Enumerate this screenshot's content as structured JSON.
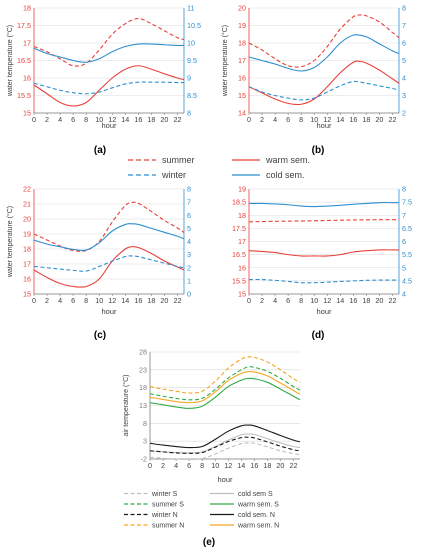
{
  "colors": {
    "red": "#e8403a",
    "blue": "#2e8fd0",
    "black": "#1a1a1a",
    "green": "#2eaa48",
    "orange": "#f5a623",
    "gray": "#bfbfbf",
    "grid": "#d9d9d9",
    "axis": "#7f7f7f"
  },
  "legend_top": [
    {
      "label": "summer",
      "color": "#e8403a",
      "dash": true
    },
    {
      "label": "warm sem.",
      "color": "#e8403a",
      "dash": false
    },
    {
      "label": "winter",
      "color": "#2e8fd0",
      "dash": true
    },
    {
      "label": "cold sem.",
      "color": "#2e8fd0",
      "dash": false
    }
  ],
  "legend_e": [
    {
      "label": "winter S",
      "color": "#bfbfbf",
      "dash": true
    },
    {
      "label": "cold sem S",
      "color": "#bfbfbf",
      "dash": false
    },
    {
      "label": "summer S",
      "color": "#2eaa48",
      "dash": true
    },
    {
      "label": "warm sem. S",
      "color": "#2eaa48",
      "dash": false
    },
    {
      "label": "winter N",
      "color": "#1a1a1a",
      "dash": true
    },
    {
      "label": "cold sem. N",
      "color": "#1a1a1a",
      "dash": false
    },
    {
      "label": "summer N",
      "color": "#f5a623",
      "dash": true
    },
    {
      "label": "warm sem. N",
      "color": "#f5a623",
      "dash": false
    }
  ],
  "chart_data": [
    {
      "id": "a",
      "caption": "(a)",
      "type": "line",
      "xlabel": "hour",
      "ylabel": "water temperature (°C)",
      "x_ticks": [
        0,
        2,
        4,
        6,
        8,
        10,
        12,
        14,
        16,
        18,
        20,
        22
      ],
      "xlim": [
        0,
        23
      ],
      "ylim_left": [
        15,
        18
      ],
      "yticks_left": [
        "15",
        "15.5",
        "16",
        "16.5",
        "17",
        "17.5",
        "18"
      ],
      "ylim_right": [
        8,
        11
      ],
      "yticks_right": [
        "8",
        "8.5",
        "9",
        "9.5",
        "10",
        "10.5",
        "11"
      ],
      "series": [
        {
          "axis": "left",
          "color": "red",
          "dash": true,
          "x": [
            0,
            2,
            4,
            6,
            8,
            10,
            12,
            14,
            16,
            18,
            20,
            22,
            23
          ],
          "y": [
            16.9,
            16.75,
            16.55,
            16.35,
            16.42,
            16.8,
            17.25,
            17.55,
            17.7,
            17.55,
            17.35,
            17.15,
            17.1
          ]
        },
        {
          "axis": "left",
          "color": "red",
          "dash": false,
          "x": [
            0,
            2,
            4,
            6,
            8,
            10,
            12,
            14,
            16,
            18,
            20,
            22,
            23
          ],
          "y": [
            15.8,
            15.55,
            15.3,
            15.2,
            15.3,
            15.65,
            16.0,
            16.25,
            16.35,
            16.25,
            16.12,
            16.0,
            15.95
          ]
        },
        {
          "axis": "right",
          "color": "blue",
          "dash": true,
          "x": [
            0,
            2,
            4,
            6,
            8,
            10,
            12,
            14,
            16,
            18,
            20,
            22,
            23
          ],
          "y": [
            8.85,
            8.75,
            8.65,
            8.58,
            8.55,
            8.6,
            8.72,
            8.83,
            8.88,
            8.88,
            8.88,
            8.87,
            8.87
          ]
        },
        {
          "axis": "right",
          "color": "blue",
          "dash": false,
          "x": [
            0,
            2,
            4,
            6,
            8,
            10,
            12,
            14,
            16,
            18,
            20,
            22,
            23
          ],
          "y": [
            9.85,
            9.7,
            9.6,
            9.5,
            9.45,
            9.55,
            9.75,
            9.9,
            9.97,
            9.97,
            9.95,
            9.93,
            9.93
          ]
        }
      ]
    },
    {
      "id": "b",
      "caption": "(b)",
      "type": "line",
      "xlabel": "hour",
      "ylabel": "water temperature (°C)",
      "x_ticks": [
        0,
        2,
        4,
        6,
        8,
        10,
        12,
        14,
        16,
        18,
        20,
        22
      ],
      "xlim": [
        0,
        23
      ],
      "ylim_left": [
        14,
        20
      ],
      "yticks_left": [
        "14",
        "15",
        "16",
        "17",
        "18",
        "19",
        "20"
      ],
      "ylim_right": [
        2,
        8
      ],
      "yticks_right": [
        "2",
        "3",
        "4",
        "5",
        "6",
        "7",
        "8"
      ],
      "series": [
        {
          "axis": "left",
          "color": "red",
          "dash": true,
          "x": [
            0,
            2,
            4,
            6,
            8,
            10,
            12,
            14,
            16,
            17,
            18,
            20,
            22,
            23
          ],
          "y": [
            18.0,
            17.6,
            17.1,
            16.7,
            16.65,
            17.0,
            17.8,
            18.8,
            19.5,
            19.6,
            19.55,
            19.2,
            18.6,
            18.3
          ]
        },
        {
          "axis": "left",
          "color": "red",
          "dash": false,
          "x": [
            0,
            2,
            4,
            6,
            8,
            10,
            12,
            14,
            16,
            17,
            18,
            20,
            22,
            23
          ],
          "y": [
            15.5,
            15.15,
            14.8,
            14.55,
            14.5,
            14.8,
            15.5,
            16.3,
            16.9,
            16.95,
            16.85,
            16.45,
            15.95,
            15.7
          ]
        },
        {
          "axis": "right",
          "color": "blue",
          "dash": true,
          "x": [
            0,
            2,
            4,
            6,
            8,
            10,
            12,
            14,
            16,
            18,
            20,
            22,
            23
          ],
          "y": [
            3.5,
            3.2,
            3.0,
            2.85,
            2.75,
            2.85,
            3.2,
            3.55,
            3.8,
            3.7,
            3.55,
            3.4,
            3.3
          ]
        },
        {
          "axis": "right",
          "color": "blue",
          "dash": false,
          "x": [
            0,
            2,
            4,
            6,
            8,
            10,
            12,
            14,
            16,
            18,
            20,
            22,
            23
          ],
          "y": [
            5.2,
            5.0,
            4.8,
            4.55,
            4.4,
            4.6,
            5.2,
            6.0,
            6.45,
            6.35,
            5.95,
            5.55,
            5.4
          ]
        }
      ]
    },
    {
      "id": "c",
      "caption": "(c)",
      "type": "line",
      "xlabel": "hour",
      "ylabel": "water temperature (°C)",
      "x_ticks": [
        0,
        2,
        4,
        6,
        8,
        10,
        12,
        14,
        16,
        18,
        20,
        22
      ],
      "xlim": [
        0,
        23
      ],
      "ylim_left": [
        15,
        22
      ],
      "yticks_left": [
        "15",
        "16",
        "17",
        "18",
        "19",
        "20",
        "21",
        "22"
      ],
      "ylim_right": [
        0,
        8
      ],
      "yticks_right": [
        "0",
        "1",
        "2",
        "3",
        "4",
        "5",
        "6",
        "7",
        "8"
      ],
      "series": [
        {
          "axis": "left",
          "color": "red",
          "dash": true,
          "x": [
            0,
            2,
            4,
            6,
            8,
            10,
            12,
            14,
            15,
            16,
            18,
            20,
            22,
            23
          ],
          "y": [
            19.0,
            18.6,
            18.2,
            17.9,
            17.9,
            18.5,
            19.8,
            20.9,
            21.1,
            21.05,
            20.5,
            19.9,
            19.4,
            19.1
          ]
        },
        {
          "axis": "left",
          "color": "red",
          "dash": false,
          "x": [
            0,
            2,
            4,
            6,
            8,
            10,
            12,
            14,
            15,
            16,
            18,
            20,
            22,
            23
          ],
          "y": [
            16.6,
            16.1,
            15.7,
            15.5,
            15.5,
            16.0,
            17.2,
            18.0,
            18.15,
            18.1,
            17.7,
            17.2,
            16.8,
            16.6
          ]
        },
        {
          "axis": "right",
          "color": "blue",
          "dash": true,
          "x": [
            0,
            2,
            4,
            6,
            8,
            10,
            12,
            14,
            15,
            16,
            18,
            20,
            22,
            23
          ],
          "y": [
            2.1,
            2.0,
            1.9,
            1.8,
            1.75,
            2.1,
            2.5,
            2.85,
            2.9,
            2.85,
            2.6,
            2.35,
            2.1,
            2.0
          ]
        },
        {
          "axis": "right",
          "color": "blue",
          "dash": false,
          "x": [
            0,
            2,
            4,
            6,
            8,
            10,
            12,
            14,
            15,
            16,
            18,
            20,
            22,
            23
          ],
          "y": [
            4.1,
            3.8,
            3.6,
            3.4,
            3.35,
            3.9,
            4.8,
            5.3,
            5.35,
            5.3,
            5.0,
            4.7,
            4.4,
            4.2
          ]
        }
      ]
    },
    {
      "id": "d",
      "caption": "(d)",
      "type": "line",
      "xlabel": "hour",
      "ylabel": "",
      "x_ticks": [
        0,
        2,
        4,
        6,
        8,
        10,
        12,
        14,
        16,
        18,
        20,
        22
      ],
      "xlim": [
        0,
        23
      ],
      "ylim_left": [
        15,
        19
      ],
      "yticks_left": [
        "15",
        "15.5",
        "16",
        "16.5",
        "17",
        "17.5",
        "18",
        "18.5",
        "19"
      ],
      "ylim_right": [
        4,
        8
      ],
      "yticks_right": [
        "4",
        "4.5",
        "5",
        "5.5",
        "6",
        "6.5",
        "7",
        "7.5",
        "8"
      ],
      "series": [
        {
          "axis": "left",
          "color": "red",
          "dash": true,
          "x": [
            0,
            4,
            8,
            12,
            16,
            20,
            23
          ],
          "y": [
            17.75,
            17.77,
            17.78,
            17.8,
            17.82,
            17.83,
            17.83
          ]
        },
        {
          "axis": "left",
          "color": "red",
          "dash": false,
          "x": [
            0,
            2,
            4,
            6,
            8,
            10,
            12,
            14,
            16,
            18,
            20,
            22,
            23
          ],
          "y": [
            16.65,
            16.62,
            16.58,
            16.5,
            16.45,
            16.45,
            16.45,
            16.5,
            16.6,
            16.65,
            16.68,
            16.68,
            16.68
          ]
        },
        {
          "axis": "right",
          "color": "blue",
          "dash": true,
          "x": [
            0,
            2,
            4,
            6,
            8,
            10,
            12,
            14,
            16,
            18,
            20,
            22,
            23
          ],
          "y": [
            4.55,
            4.55,
            4.52,
            4.48,
            4.43,
            4.43,
            4.45,
            4.48,
            4.5,
            4.52,
            4.53,
            4.53,
            4.53
          ]
        },
        {
          "axis": "right",
          "color": "blue",
          "dash": false,
          "x": [
            0,
            2,
            4,
            6,
            8,
            10,
            12,
            14,
            16,
            18,
            20,
            22,
            23
          ],
          "y": [
            7.45,
            7.45,
            7.43,
            7.4,
            7.35,
            7.33,
            7.35,
            7.38,
            7.42,
            7.45,
            7.48,
            7.48,
            7.48
          ]
        }
      ]
    },
    {
      "id": "e",
      "caption": "(e)",
      "type": "line",
      "xlabel": "hour",
      "ylabel": "air temperature (°C)",
      "x_ticks": [
        0,
        2,
        4,
        6,
        8,
        10,
        12,
        14,
        16,
        18,
        20,
        22
      ],
      "xlim": [
        0,
        23
      ],
      "ylim_left": [
        -2,
        28
      ],
      "yticks_left": [
        "-2",
        "3",
        "8",
        "13",
        "18",
        "23",
        "28"
      ],
      "series": [
        {
          "axis": "left",
          "color": "gray",
          "dash": true,
          "x": [
            0,
            2,
            4,
            6,
            8,
            10,
            12,
            14,
            15,
            16,
            18,
            20,
            22,
            23
          ],
          "y": [
            -1.5,
            -1.8,
            -2.0,
            -2.1,
            -1.9,
            -0.6,
            1.0,
            2.3,
            2.5,
            2.4,
            1.4,
            0.3,
            -0.5,
            -0.8
          ]
        },
        {
          "axis": "left",
          "color": "gray",
          "dash": false,
          "x": [
            0,
            2,
            4,
            6,
            8,
            10,
            12,
            14,
            15,
            16,
            18,
            20,
            22,
            23
          ],
          "y": [
            0.3,
            0.0,
            -0.2,
            -0.3,
            0.0,
            1.5,
            3.3,
            4.8,
            5.0,
            4.9,
            3.7,
            2.5,
            1.5,
            1.2
          ]
        },
        {
          "axis": "left",
          "color": "black",
          "dash": true,
          "x": [
            0,
            2,
            4,
            6,
            8,
            10,
            12,
            14,
            15,
            16,
            18,
            20,
            22,
            23
          ],
          "y": [
            0.3,
            0.0,
            -0.3,
            -0.4,
            -0.2,
            1.3,
            2.9,
            4.0,
            4.1,
            3.9,
            2.8,
            1.6,
            0.6,
            0.3
          ]
        },
        {
          "axis": "left",
          "color": "black",
          "dash": false,
          "x": [
            0,
            2,
            4,
            6,
            8,
            10,
            12,
            14,
            15,
            16,
            18,
            20,
            22,
            23
          ],
          "y": [
            2.4,
            1.9,
            1.5,
            1.2,
            1.5,
            3.5,
            5.8,
            7.3,
            7.5,
            7.3,
            6.0,
            4.6,
            3.3,
            2.8
          ]
        },
        {
          "axis": "left",
          "color": "green",
          "dash": true,
          "x": [
            0,
            2,
            4,
            6,
            8,
            10,
            12,
            14,
            15,
            16,
            18,
            20,
            22,
            23
          ],
          "y": [
            16.3,
            15.6,
            15.0,
            14.6,
            15.0,
            17.5,
            20.7,
            23.0,
            23.8,
            23.7,
            22.6,
            20.6,
            18.3,
            17.3
          ]
        },
        {
          "axis": "left",
          "color": "green",
          "dash": false,
          "x": [
            0,
            2,
            4,
            6,
            8,
            10,
            12,
            14,
            15,
            16,
            18,
            20,
            22,
            23
          ],
          "y": [
            13.8,
            13.2,
            12.6,
            12.2,
            12.8,
            15.3,
            18.3,
            20.1,
            20.6,
            20.5,
            19.5,
            17.6,
            15.6,
            14.6
          ]
        },
        {
          "axis": "left",
          "color": "orange",
          "dash": true,
          "x": [
            0,
            2,
            4,
            6,
            8,
            10,
            12,
            14,
            15,
            16,
            18,
            20,
            22,
            23
          ],
          "y": [
            18.3,
            17.6,
            17.0,
            16.5,
            17.0,
            19.8,
            23.5,
            26.0,
            26.6,
            26.5,
            25.2,
            23.0,
            20.5,
            19.5
          ]
        },
        {
          "axis": "left",
          "color": "orange",
          "dash": false,
          "x": [
            0,
            2,
            4,
            6,
            8,
            10,
            12,
            14,
            15,
            16,
            18,
            20,
            22,
            23
          ],
          "y": [
            15.3,
            14.7,
            14.1,
            13.8,
            14.3,
            16.8,
            20.0,
            22.0,
            22.5,
            22.4,
            21.3,
            19.3,
            17.2,
            16.1
          ]
        }
      ]
    }
  ]
}
